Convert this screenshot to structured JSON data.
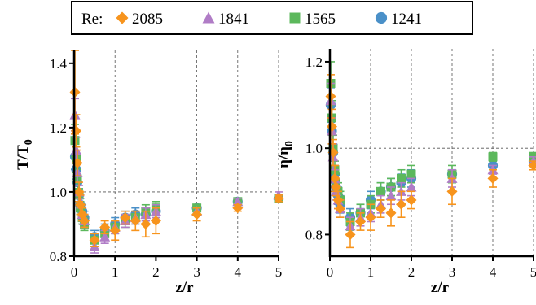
{
  "legend": {
    "title": "Re:",
    "placement": "top-center"
  },
  "colors": {
    "2085": "#f7941d",
    "1841": "#b07cc6",
    "1565": "#5cb85c",
    "1241": "#4a90c8",
    "grid": "#555555",
    "hline": "#555555"
  },
  "chart_data": [
    {
      "type": "scatter",
      "title": "",
      "ylabel_main": "T/T",
      "ylabel_sub": "0",
      "xlabel": "z/r",
      "xlim": [
        0,
        5
      ],
      "ylim": [
        0.8,
        1.44
      ],
      "xticks": [
        "0",
        "1",
        "2",
        "3",
        "4",
        "5"
      ],
      "yticks": [
        "0.8",
        "1.0",
        "1.2",
        "1.4"
      ],
      "grid": "x-dashed",
      "reference_line": 1.0,
      "series": [
        {
          "name": "2085",
          "marker": "diamond",
          "x": [
            0.02,
            0.05,
            0.08,
            0.12,
            0.15,
            0.2,
            0.25,
            0.5,
            0.75,
            1.0,
            1.25,
            1.5,
            1.75,
            2.0,
            3.0,
            4.0,
            5.0
          ],
          "y": [
            1.31,
            1.19,
            1.09,
            1.0,
            0.96,
            0.93,
            0.91,
            0.85,
            0.89,
            0.88,
            0.92,
            0.91,
            0.9,
            0.91,
            0.93,
            0.95,
            0.98
          ],
          "err": [
            0.13,
            0.05,
            0.04,
            0.03,
            0.03,
            0.02,
            0.02,
            0.02,
            0.02,
            0.03,
            0.02,
            0.03,
            0.04,
            0.04,
            0.02,
            0.01,
            0.01
          ]
        },
        {
          "name": "1841",
          "marker": "triangle",
          "x": [
            0.02,
            0.05,
            0.08,
            0.12,
            0.15,
            0.2,
            0.25,
            0.5,
            0.75,
            1.0,
            1.25,
            1.5,
            1.75,
            2.0,
            3.0,
            4.0,
            5.0
          ],
          "y": [
            1.24,
            1.13,
            1.06,
            1.0,
            0.97,
            0.93,
            0.91,
            0.83,
            0.86,
            0.89,
            0.91,
            0.92,
            0.93,
            0.94,
            0.94,
            0.97,
            0.99
          ],
          "err": [
            0.05,
            0.04,
            0.03,
            0.02,
            0.02,
            0.02,
            0.02,
            0.02,
            0.02,
            0.02,
            0.02,
            0.02,
            0.02,
            0.02,
            0.01,
            0.01,
            0.01
          ]
        },
        {
          "name": "1565",
          "marker": "square",
          "x": [
            0.02,
            0.05,
            0.08,
            0.12,
            0.15,
            0.2,
            0.25,
            0.5,
            0.75,
            1.0,
            1.25,
            1.5,
            1.75,
            2.0,
            3.0,
            4.0,
            5.0
          ],
          "y": [
            1.16,
            1.1,
            1.04,
            0.99,
            0.95,
            0.92,
            0.9,
            0.85,
            0.87,
            0.89,
            0.91,
            0.92,
            0.94,
            0.95,
            0.95,
            0.97,
            0.98
          ],
          "err": [
            0.05,
            0.04,
            0.03,
            0.02,
            0.02,
            0.02,
            0.02,
            0.02,
            0.02,
            0.02,
            0.02,
            0.02,
            0.02,
            0.02,
            0.01,
            0.01,
            0.01
          ]
        },
        {
          "name": "1241",
          "marker": "circle",
          "x": [
            0.02,
            0.05,
            0.08,
            0.12,
            0.15,
            0.2,
            0.25,
            0.5,
            0.75,
            1.0,
            1.25,
            1.5,
            1.75,
            2.0,
            3.0,
            4.0,
            5.0
          ],
          "y": [
            1.11,
            1.07,
            1.03,
            0.99,
            0.96,
            0.94,
            0.92,
            0.86,
            0.88,
            0.9,
            0.92,
            0.93,
            0.93,
            0.94,
            0.95,
            0.97,
            0.98
          ],
          "err": [
            0.04,
            0.03,
            0.02,
            0.02,
            0.02,
            0.02,
            0.02,
            0.02,
            0.02,
            0.02,
            0.02,
            0.02,
            0.02,
            0.02,
            0.01,
            0.01,
            0.01
          ]
        }
      ]
    },
    {
      "type": "scatter",
      "title": "",
      "ylabel_main": "η/η",
      "ylabel_sub": "0",
      "xlabel": "z/r",
      "xlim": [
        0,
        5
      ],
      "ylim": [
        0.75,
        1.23
      ],
      "xticks": [
        "0",
        "1",
        "2",
        "3",
        "4",
        "5"
      ],
      "yticks": [
        "0.8",
        "1.0",
        "1.2"
      ],
      "grid": "x-dashed",
      "reference_line": 1.0,
      "series": [
        {
          "name": "2085",
          "marker": "diamond",
          "x": [
            0.02,
            0.05,
            0.08,
            0.12,
            0.15,
            0.2,
            0.25,
            0.5,
            0.75,
            1.0,
            1.25,
            1.5,
            1.75,
            2.0,
            3.0,
            4.0,
            5.0
          ],
          "y": [
            1.12,
            1.05,
            0.99,
            0.93,
            0.91,
            0.88,
            0.86,
            0.8,
            0.83,
            0.84,
            0.86,
            0.85,
            0.87,
            0.88,
            0.9,
            0.93,
            0.96
          ],
          "err": [
            0.05,
            0.04,
            0.03,
            0.03,
            0.02,
            0.02,
            0.02,
            0.03,
            0.02,
            0.03,
            0.02,
            0.03,
            0.03,
            0.02,
            0.03,
            0.02,
            0.01
          ]
        },
        {
          "name": "1841",
          "marker": "triangle",
          "x": [
            0.02,
            0.05,
            0.08,
            0.12,
            0.15,
            0.2,
            0.25,
            0.5,
            0.75,
            1.0,
            1.25,
            1.5,
            1.75,
            2.0,
            3.0,
            4.0,
            5.0
          ],
          "y": [
            1.11,
            1.04,
            0.98,
            0.93,
            0.9,
            0.88,
            0.86,
            0.82,
            0.84,
            0.85,
            0.87,
            0.89,
            0.9,
            0.91,
            0.93,
            0.95,
            0.97
          ],
          "err": [
            0.04,
            0.03,
            0.03,
            0.02,
            0.02,
            0.02,
            0.02,
            0.02,
            0.02,
            0.02,
            0.02,
            0.02,
            0.02,
            0.02,
            0.02,
            0.01,
            0.01
          ]
        },
        {
          "name": "1565",
          "marker": "square",
          "x": [
            0.02,
            0.05,
            0.08,
            0.12,
            0.15,
            0.2,
            0.25,
            0.5,
            0.75,
            1.0,
            1.25,
            1.5,
            1.75,
            2.0,
            3.0,
            4.0,
            5.0
          ],
          "y": [
            1.15,
            1.07,
            1.0,
            0.95,
            0.92,
            0.9,
            0.88,
            0.83,
            0.85,
            0.87,
            0.9,
            0.91,
            0.93,
            0.94,
            0.94,
            0.98,
            0.98
          ],
          "err": [
            0.05,
            0.04,
            0.03,
            0.02,
            0.02,
            0.02,
            0.02,
            0.02,
            0.02,
            0.02,
            0.02,
            0.02,
            0.02,
            0.02,
            0.02,
            0.01,
            0.01
          ]
        },
        {
          "name": "1241",
          "marker": "circle",
          "x": [
            0.02,
            0.05,
            0.08,
            0.12,
            0.15,
            0.2,
            0.25,
            0.5,
            0.75,
            1.0,
            1.25,
            1.5,
            1.75,
            2.0,
            3.0,
            4.0,
            5.0
          ],
          "y": [
            1.1,
            1.04,
            0.99,
            0.94,
            0.91,
            0.89,
            0.87,
            0.84,
            0.85,
            0.88,
            0.9,
            0.91,
            0.92,
            0.93,
            0.94,
            0.96,
            0.97
          ],
          "err": [
            0.04,
            0.03,
            0.02,
            0.02,
            0.02,
            0.02,
            0.02,
            0.02,
            0.02,
            0.02,
            0.02,
            0.02,
            0.02,
            0.02,
            0.01,
            0.01,
            0.01
          ]
        }
      ]
    }
  ]
}
